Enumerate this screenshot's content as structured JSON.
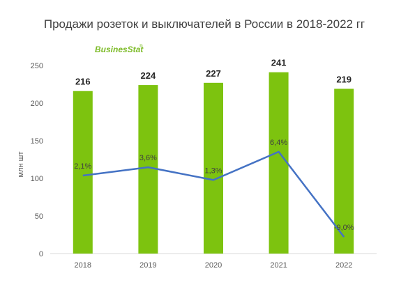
{
  "chart_data": {
    "type": "bar",
    "title": "Продажи розеток и выключателей в России  в 2018-2022 гг",
    "logo": "BusinesStat",
    "ylabel": "млн шт",
    "ylim": [
      0,
      250
    ],
    "yticks": [
      "0",
      "50",
      "100",
      "150",
      "200",
      "250"
    ],
    "categories": [
      "2018",
      "2019",
      "2020",
      "2021",
      "2022"
    ],
    "values": [
      216,
      224,
      227,
      241,
      219
    ],
    "value_labels": [
      "216",
      "224",
      "227",
      "241",
      "219"
    ],
    "growth_line": {
      "type": "line",
      "values": [
        2.1,
        3.6,
        1.3,
        6.4,
        -9.0
      ],
      "labels": [
        "2,1%",
        "3,6%",
        "1,3%",
        "6,4%",
        "-9,0%"
      ]
    },
    "grid": false,
    "legend": "none",
    "colors": {
      "bar": "#7dc30f",
      "line": "#4472c4",
      "logo": "#7dbb28"
    }
  }
}
